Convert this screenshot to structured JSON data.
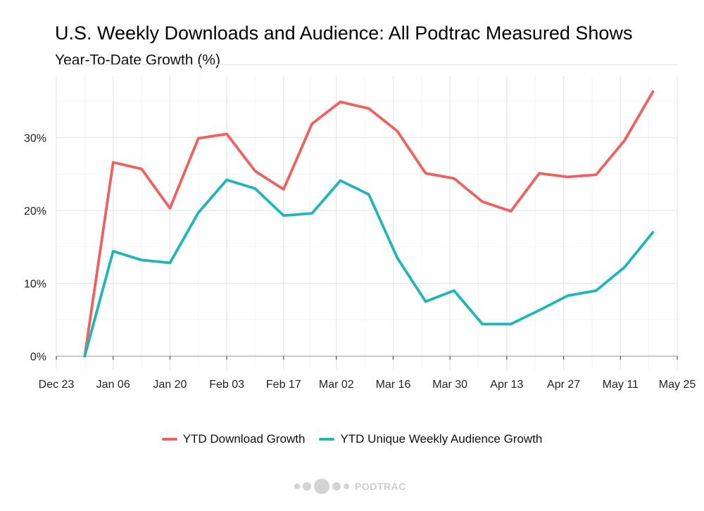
{
  "chart_data": {
    "type": "line",
    "title": "U.S. Weekly Downloads and Audience: All Podtrac Measured Shows",
    "subtitle": "Year-To-Date Growth (%)",
    "xlabel": "",
    "ylabel": "",
    "x": [
      "2024-12-30",
      "2025-01-06",
      "2025-01-13",
      "2025-01-20",
      "2025-01-27",
      "2025-02-03",
      "2025-02-10",
      "2025-02-17",
      "2025-02-24",
      "2025-03-03",
      "2025-03-10",
      "2025-03-17",
      "2025-03-24",
      "2025-03-31",
      "2025-04-07",
      "2025-04-14",
      "2025-04-21",
      "2025-04-28",
      "2025-05-05",
      "2025-05-12",
      "2025-05-19"
    ],
    "xlim": [
      "2024-12-23",
      "2025-05-25"
    ],
    "x_ticks": [
      {
        "date": "2024-12-23",
        "label": "Dec 23"
      },
      {
        "date": "2025-01-06",
        "label": "Jan 06"
      },
      {
        "date": "2025-01-20",
        "label": "Jan 20"
      },
      {
        "date": "2025-02-03",
        "label": "Feb 03"
      },
      {
        "date": "2025-02-17",
        "label": "Feb 17"
      },
      {
        "date": "2025-03-02",
        "label": "Mar 02"
      },
      {
        "date": "2025-03-16",
        "label": "Mar 16"
      },
      {
        "date": "2025-03-30",
        "label": "Mar 30"
      },
      {
        "date": "2025-04-13",
        "label": "Apr 13"
      },
      {
        "date": "2025-04-27",
        "label": "Apr 27"
      },
      {
        "date": "2025-05-11",
        "label": "May 11"
      },
      {
        "date": "2025-05-25",
        "label": "May 25"
      }
    ],
    "ylim": [
      0,
      38
    ],
    "y_ticks": [
      0,
      10,
      20,
      30
    ],
    "y_tick_labels": [
      "0%",
      "10%",
      "20%",
      "30%"
    ],
    "grid": true,
    "legend_position": "bottom",
    "series": [
      {
        "name": "YTD Download Growth",
        "color": "#F0605D",
        "values": [
          0,
          26.6,
          25.7,
          20.3,
          29.9,
          30.5,
          25.4,
          22.9,
          31.9,
          34.9,
          34.0,
          30.9,
          25.1,
          24.4,
          21.2,
          19.9,
          25.1,
          24.6,
          24.9,
          29.6,
          36.3
        ]
      },
      {
        "name": "YTD Unique Weekly Audience Growth",
        "color": "#1FB6B9",
        "values": [
          0,
          14.4,
          13.2,
          12.8,
          19.7,
          24.2,
          23.0,
          19.3,
          19.6,
          24.1,
          22.2,
          13.5,
          7.5,
          9.0,
          4.4,
          4.4,
          6.3,
          8.3,
          9.0,
          12.2,
          17.0
        ]
      }
    ]
  },
  "brand": {
    "name": "PODTRAC",
    "logo_color": "#d3d3d3"
  }
}
